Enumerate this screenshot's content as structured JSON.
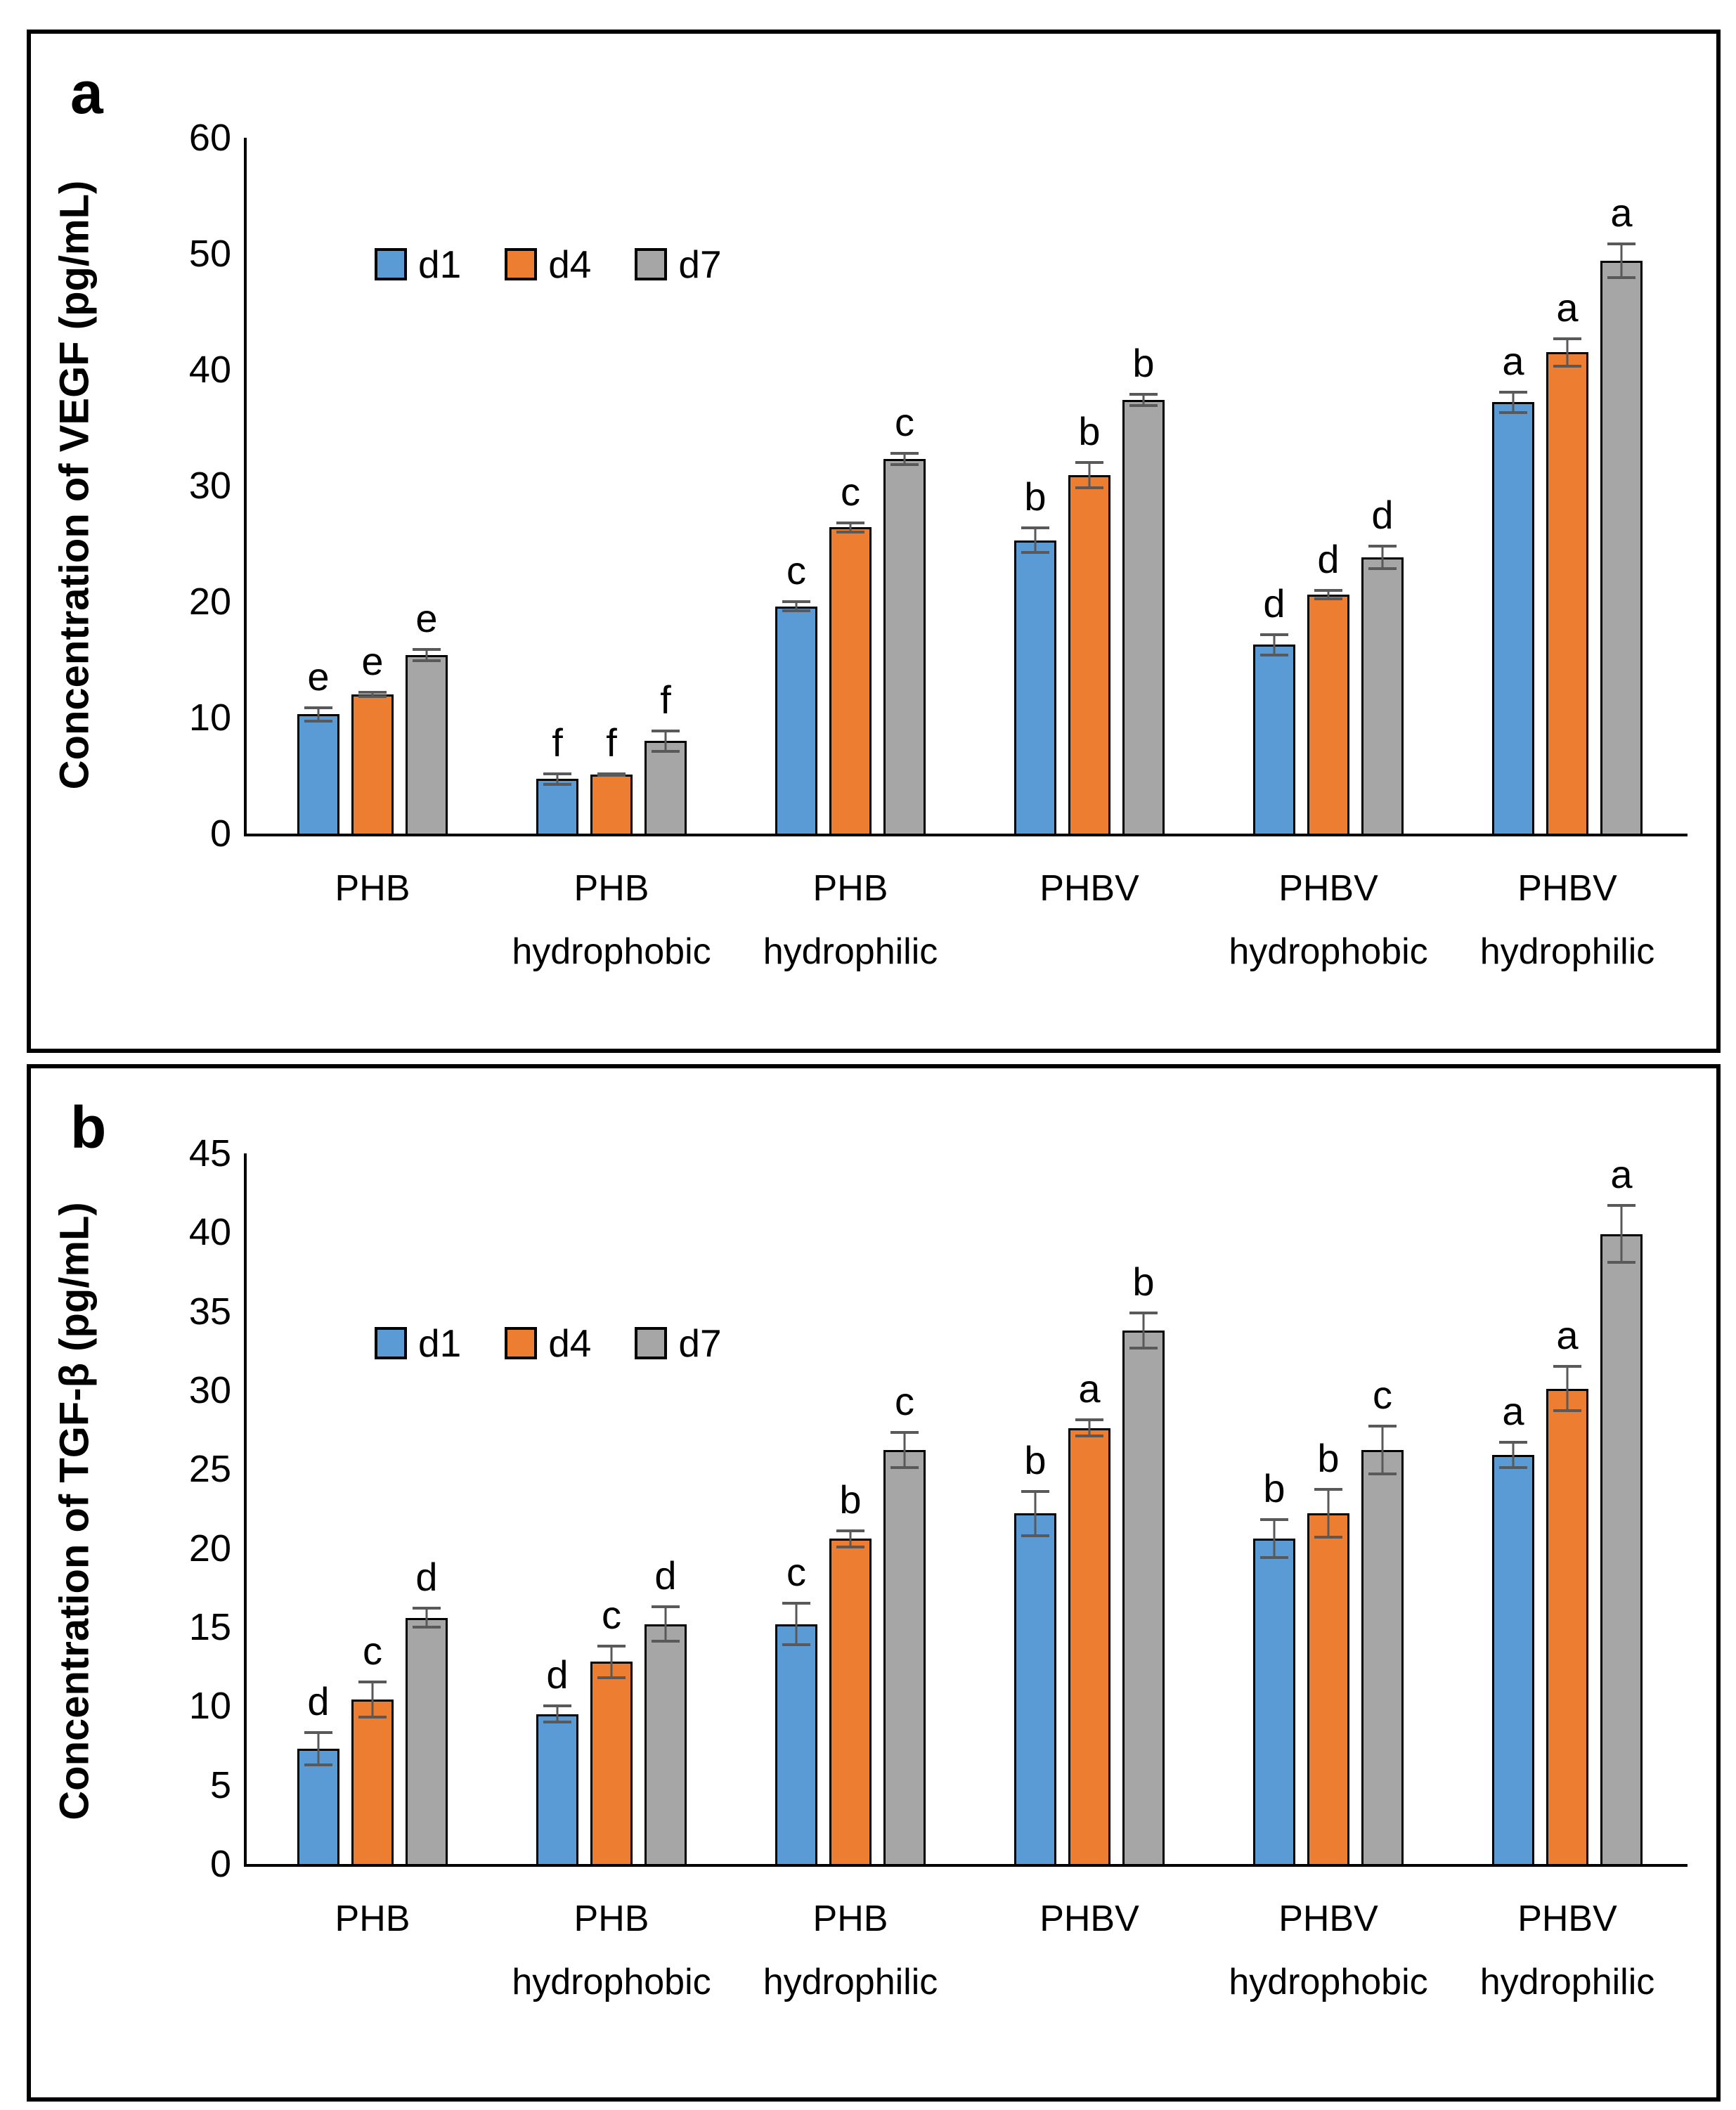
{
  "figure": {
    "panels": [
      {
        "label": "a",
        "chart_data": {
          "type": "bar",
          "title": "",
          "ylabel": "Concentration of VEGF (pg/mL)",
          "xlabel": "",
          "ylim": [
            0,
            60
          ],
          "ytick_step": 10,
          "grid": false,
          "legend_position": "upper-left-inside",
          "categories": [
            "PHB",
            "PHB hydrophobic",
            "PHB hydrophilic",
            "PHBV",
            "PHBV hydrophobic",
            "PHBV hydrophilic"
          ],
          "category_line1": [
            "PHB",
            "PHB",
            "PHB",
            "PHBV",
            "PHBV",
            "PHBV"
          ],
          "category_line2": [
            "",
            "hydrophobic",
            "hydrophilic",
            "",
            "hydrophobic",
            "hydrophilic"
          ],
          "series": [
            {
              "name": "d1",
              "color": "#5B9BD5",
              "values": [
                10.3,
                4.7,
                19.6,
                25.3,
                16.3,
                37.2
              ],
              "errors": [
                0.7,
                0.6,
                0.5,
                1.2,
                1.0,
                1.0
              ],
              "letters": [
                "e",
                "f",
                "c",
                "b",
                "d",
                "a"
              ]
            },
            {
              "name": "d4",
              "color": "#ED7D31",
              "values": [
                12.0,
                5.1,
                26.4,
                30.9,
                20.6,
                41.5
              ],
              "errors": [
                0.3,
                0.2,
                0.5,
                1.2,
                0.5,
                1.3
              ],
              "letters": [
                "e",
                "f",
                "c",
                "b",
                "d",
                "a"
              ]
            },
            {
              "name": "d7",
              "color": "#A6A6A6",
              "values": [
                15.4,
                8.0,
                32.3,
                37.4,
                23.8,
                49.4
              ],
              "errors": [
                0.6,
                1.0,
                0.6,
                0.6,
                1.1,
                1.6
              ],
              "letters": [
                "e",
                "f",
                "c",
                "b",
                "d",
                "a"
              ]
            }
          ]
        }
      },
      {
        "label": "b",
        "chart_data": {
          "type": "bar",
          "title": "",
          "ylabel": "Concentration of TGF-β (pg/mL)",
          "xlabel": "",
          "ylim": [
            0,
            45
          ],
          "ytick_step": 5,
          "grid": false,
          "legend_position": "upper-left-inside",
          "categories": [
            "PHB",
            "PHB hydrophobic",
            "PHB hydrophilic",
            "PHBV",
            "PHBV hydrophobic",
            "PHBV hydrophilic"
          ],
          "category_line1": [
            "PHB",
            "PHB",
            "PHB",
            "PHBV",
            "PHBV",
            "PHBV"
          ],
          "category_line2": [
            "",
            "hydrophobic",
            "hydrophilic",
            "",
            "hydrophobic",
            "hydrophilic"
          ],
          "series": [
            {
              "name": "d1",
              "color": "#5B9BD5",
              "values": [
                7.3,
                9.5,
                15.2,
                22.2,
                20.6,
                25.9
              ],
              "errors": [
                1.1,
                0.6,
                1.4,
                1.5,
                1.3,
                0.9
              ],
              "letters": [
                "d",
                "d",
                "c",
                "b",
                "b",
                "a"
              ]
            },
            {
              "name": "d4",
              "color": "#ED7D31",
              "values": [
                10.4,
                12.8,
                20.6,
                27.6,
                22.2,
                30.1
              ],
              "errors": [
                1.2,
                1.1,
                0.6,
                0.6,
                1.6,
                1.5
              ],
              "letters": [
                "c",
                "c",
                "b",
                "a",
                "b",
                "a"
              ]
            },
            {
              "name": "d7",
              "color": "#A6A6A6",
              "values": [
                15.6,
                15.2,
                26.2,
                33.8,
                26.2,
                39.9
              ],
              "errors": [
                0.7,
                1.2,
                1.2,
                1.2,
                1.6,
                1.9
              ],
              "letters": [
                "d",
                "d",
                "c",
                "b",
                "c",
                "a"
              ]
            }
          ]
        }
      }
    ],
    "error_bar_color": "#595959",
    "bar_outline_color": "#000000"
  }
}
